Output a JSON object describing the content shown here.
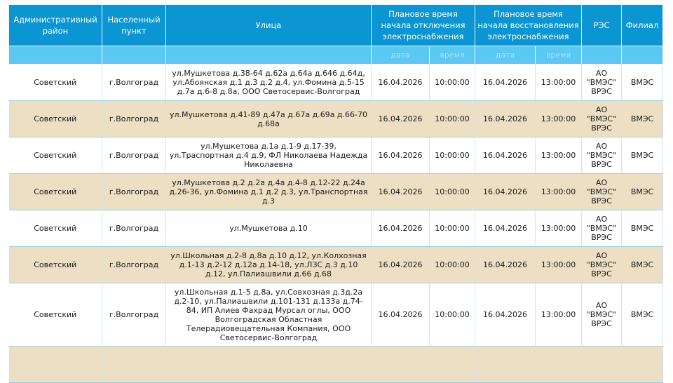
{
  "headers": {
    "district": "Административный район",
    "locality": "Населенный пункт",
    "street": "Улица",
    "off": "Плановое время начала отключения электроснабжения",
    "on": "Плановое время начала восстановления электроснабжения",
    "res": "РЭС",
    "branch": "Филиал"
  },
  "subheaders": {
    "date1": "дата",
    "time1": "время",
    "date2": "дата",
    "time2": "время"
  },
  "colors": {
    "header": "#0b95d3",
    "subheader": "#5ac8f2",
    "alt_row": "#ecdfc4"
  },
  "rows": [
    {
      "district": "Советский",
      "locality": "г.Волгоград",
      "street": "ул.Мушкетова д.38-64 д.62а д.64а д.646 д.64д, ул.Абоянская д.1 д.3 д.2 д.4, ул.Фомина д.5-15 д.7а д.6-8 д.8а, ООО Светосервис-Волгоград",
      "off_date": "16.04.2026",
      "off_time": "10:00:00",
      "on_date": "16.04.2026",
      "on_time": "13:00:00",
      "res": "АО \"ВМЭС\" ВРЭС",
      "branch": "ВМЭС"
    },
    {
      "district": "Советский",
      "locality": "г.Волгоград",
      "street": "ул.Мушкетова д.41-89 д.47а д.67а д.69а д.66-70 д.68а",
      "off_date": "16.04.2026",
      "off_time": "10:00:00",
      "on_date": "16.04.2026",
      "on_time": "13:00:00",
      "res": "АО \"ВМЭС\" ВРЭС",
      "branch": "ВМЭС"
    },
    {
      "district": "Советский",
      "locality": "г.Волгоград",
      "street": "ул.Мушкетова д.1а д.1-9 д.17-39, ул.Траспортная д.4 д.9, ФЛ Николаева Надежда Николаевна",
      "off_date": "16.04.2026",
      "off_time": "10:00:00",
      "on_date": "16.04.2026",
      "on_time": "13:00:00",
      "res": "АО \"ВМЭС\" ВРЭС",
      "branch": "ВМЭС"
    },
    {
      "district": "Советский",
      "locality": "г.Волгоград",
      "street": "ул.Мушкетова д.2 д.2а д.4а д.4-8 д.12-22 д.24а д.26-36, ул.Фомина д.1 д.2 д.3, ул.Транспортная д.3",
      "off_date": "16.04.2026",
      "off_time": "10:00:00",
      "on_date": "16.04.2026",
      "on_time": "13:00:00",
      "res": "АО \"ВМЭС\" ВРЭС",
      "branch": "ВМЭС"
    },
    {
      "district": "Советский",
      "locality": "г.Волгоград",
      "street": "ул.Мушкетова д.10",
      "off_date": "16.04.2026",
      "off_time": "10:00:00",
      "on_date": "16.04.2026",
      "on_time": "13:00:00",
      "res": "АО \"ВМЭС\" ВРЭС",
      "branch": "ВМЭС"
    },
    {
      "district": "Советский",
      "locality": "г.Волгоград",
      "street": "ул.Школьная д.2-8 д.8а д.10 д.12, ул.Колхозная д.1-13 д.2-12 д.12а д.14-18, ул.ЛЗС д.3 д.10 д.12, ул.Палиашвили д.66 д.68",
      "off_date": "16.04.2026",
      "off_time": "10:00:00",
      "on_date": "16.04.2026",
      "on_time": "13:00:00",
      "res": "АО \"ВМЭС\" ВРЭС",
      "branch": "ВМЭС"
    },
    {
      "district": "Советский",
      "locality": "г.Волгоград",
      "street": "ул.Школьная д.1-5 д.8а, ул.Совхозная д.3д.2а д.2-10, ул.Палиашвили д.101-131 д.133а д.74-84, ИП Алиев Фахрад Мурсал оглы, ООО Волгоградская Областная Телерадиовещательная Компания, ООО Светосервис-Волгоград",
      "off_date": "16.04.2026",
      "off_time": "10:00:00",
      "on_date": "16.04.2026",
      "on_time": "13:00:00",
      "res": "АО \"ВМЭС\" ВРЭС",
      "branch": "ВМЭС"
    }
  ]
}
